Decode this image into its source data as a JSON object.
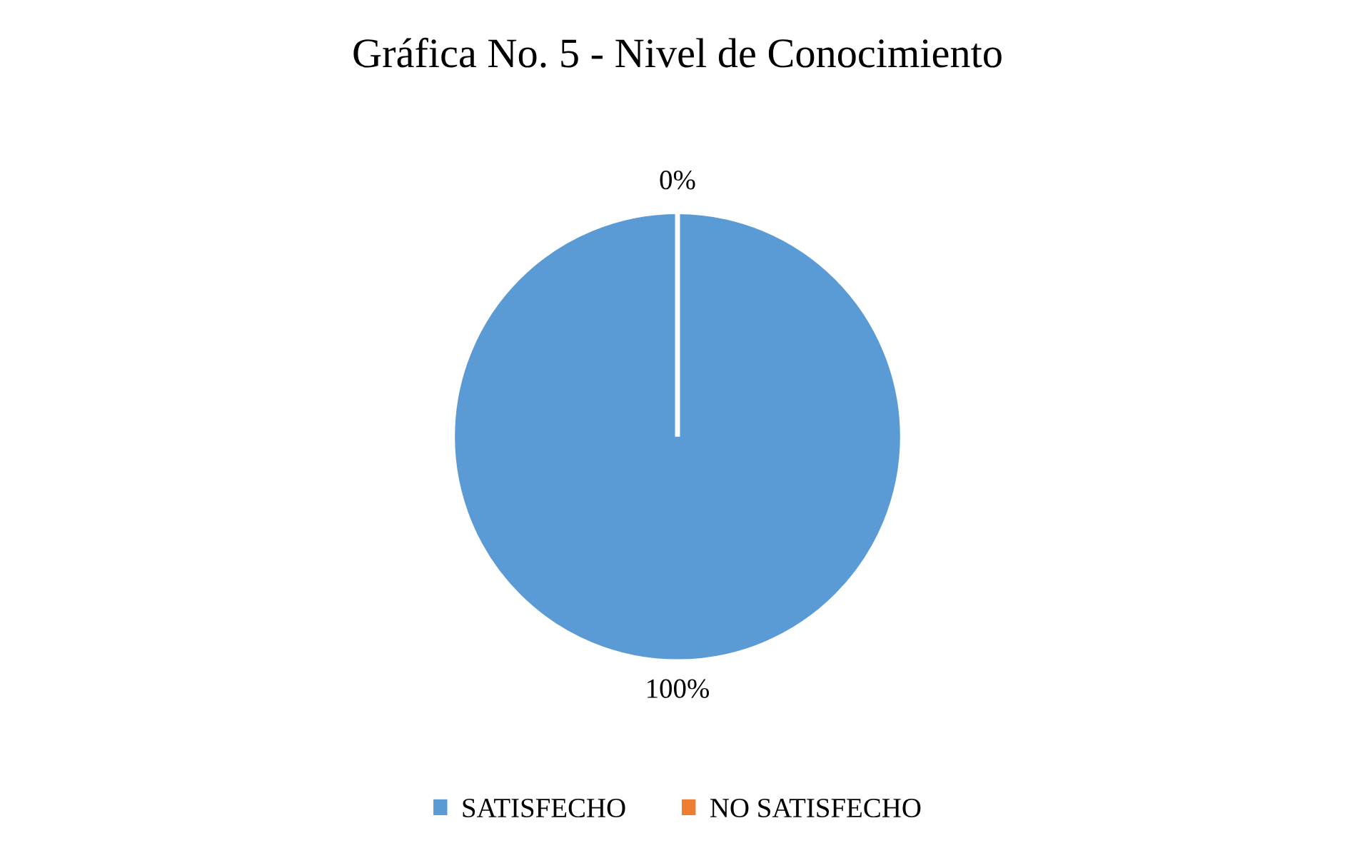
{
  "chart_data": {
    "type": "pie",
    "title": "Gráfica No. 5 - Nivel de Conocimiento",
    "categories": [
      "SATISFECHO",
      "NO SATISFECHO"
    ],
    "values": [
      100,
      0
    ],
    "colors": [
      "#5b9bd5",
      "#ed7d31"
    ],
    "value_labels": [
      "100%",
      "0%"
    ],
    "legend": "bottom"
  }
}
